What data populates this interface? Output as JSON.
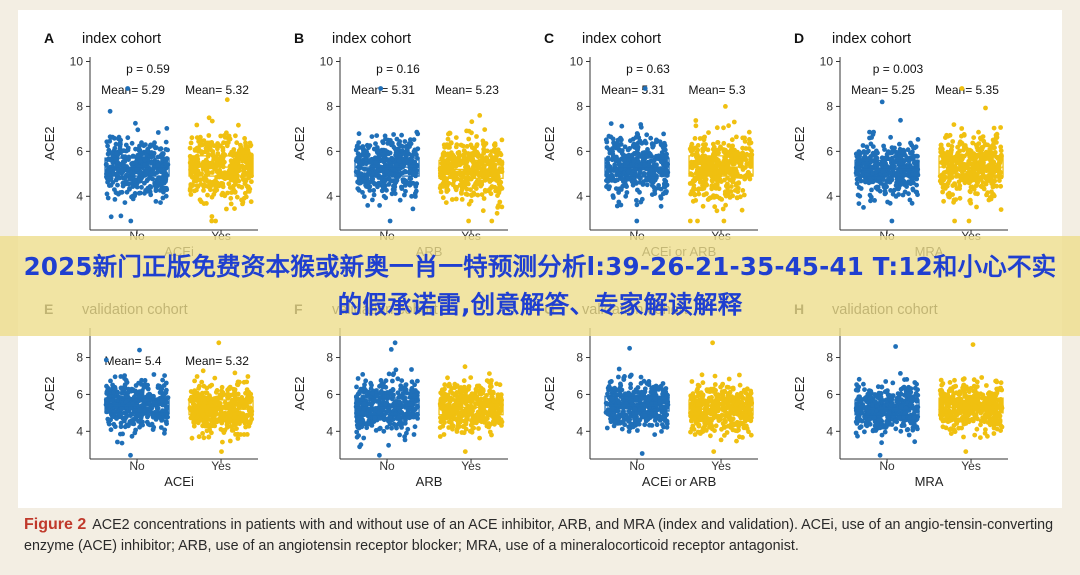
{
  "figure": {
    "caption_label": "Figure 2",
    "caption_text": "ACE2 concentrations in patients with and without use of an ACE inhibitor, ARB, and MRA (index and validation). ACEi, use of an angio-tensin-converting enzyme (ACE) inhibitor; ARB, use of an angiotensin receptor blocker; MRA, use of a mineralocorticoid receptor antagonist."
  },
  "banner": {
    "text": "2025新门正版免费资本猴或新奥一肖一特预测分析l:39-26-21-35-45-41 T:12和小心不实的假承诺雷,创意解答、专家解读解释"
  },
  "colors": {
    "no": "#1f6fb8",
    "yes": "#f0c010",
    "axis": "#333333"
  },
  "chart_data": [
    {
      "type": "scatter",
      "panel": "A",
      "title": "index cohort",
      "p_label": "p = 0.59",
      "mean_labels": [
        "Mean= 5.29",
        "Mean= 5.32"
      ],
      "categories": [
        "No",
        "Yes"
      ],
      "xlabel": "ACEi",
      "ylabel": "ACE2",
      "ylim": [
        2.5,
        10.2
      ],
      "yticks": [
        4,
        6,
        8,
        10
      ],
      "series": [
        {
          "category": "No",
          "mean": 5.29,
          "q1": 4.9,
          "median": 5.3,
          "q3": 5.7,
          "min": 2.9,
          "max": 8.8
        },
        {
          "category": "Yes",
          "mean": 5.32,
          "q1": 4.9,
          "median": 5.3,
          "q3": 5.8,
          "min": 2.9,
          "max": 8.3
        }
      ]
    },
    {
      "type": "scatter",
      "panel": "B",
      "title": "index cohort",
      "p_label": "p = 0.16",
      "mean_labels": [
        "Mean= 5.31",
        "Mean= 5.23"
      ],
      "categories": [
        "No",
        "Yes"
      ],
      "xlabel": "ARB",
      "ylabel": "ACE2",
      "ylim": [
        2.5,
        10.2
      ],
      "yticks": [
        4,
        6,
        8,
        10
      ],
      "series": [
        {
          "category": "No",
          "mean": 5.31,
          "q1": 4.9,
          "median": 5.3,
          "q3": 5.7,
          "min": 2.9,
          "max": 8.8
        },
        {
          "category": "Yes",
          "mean": 5.23,
          "q1": 4.8,
          "median": 5.2,
          "q3": 5.6,
          "min": 2.9,
          "max": 7.6
        }
      ]
    },
    {
      "type": "scatter",
      "panel": "C",
      "title": "index cohort",
      "p_label": "p = 0.63",
      "mean_labels": [
        "Mean= 5.31",
        "Mean= 5.3"
      ],
      "categories": [
        "No",
        "Yes"
      ],
      "xlabel": "ACEi or ARB",
      "ylabel": "ACE2",
      "ylim": [
        2.5,
        10.2
      ],
      "yticks": [
        4,
        6,
        8,
        10
      ],
      "series": [
        {
          "category": "No",
          "mean": 5.31,
          "q1": 4.9,
          "median": 5.3,
          "q3": 5.7,
          "min": 2.9,
          "max": 8.8
        },
        {
          "category": "Yes",
          "mean": 5.3,
          "q1": 4.9,
          "median": 5.3,
          "q3": 5.8,
          "min": 2.9,
          "max": 8.0
        }
      ]
    },
    {
      "type": "scatter",
      "panel": "D",
      "title": "index cohort",
      "p_label": "p = 0.003",
      "mean_labels": [
        "Mean= 5.25",
        "Mean= 5.35"
      ],
      "categories": [
        "No",
        "Yes"
      ],
      "xlabel": "MRA",
      "ylabel": "ACE2",
      "ylim": [
        2.5,
        10.2
      ],
      "yticks": [
        4,
        6,
        8,
        10
      ],
      "series": [
        {
          "category": "No",
          "mean": 5.25,
          "q1": 4.9,
          "median": 5.2,
          "q3": 5.6,
          "min": 2.9,
          "max": 8.2
        },
        {
          "category": "Yes",
          "mean": 5.35,
          "q1": 4.9,
          "median": 5.3,
          "q3": 5.8,
          "min": 2.9,
          "max": 8.8
        }
      ]
    },
    {
      "type": "scatter",
      "panel": "E",
      "title": "validation cohort",
      "p_label": "",
      "mean_labels": [
        "Mean= 5.4",
        "Mean= 5.32"
      ],
      "categories": [
        "No",
        "Yes"
      ],
      "xlabel": "ACEi",
      "ylabel": "ACE2",
      "ylim": [
        2.5,
        9.6
      ],
      "yticks": [
        4,
        6,
        8
      ],
      "series": [
        {
          "category": "No",
          "mean": 5.4,
          "q1": 5.0,
          "median": 5.4,
          "q3": 5.8,
          "min": 2.7,
          "max": 8.4
        },
        {
          "category": "Yes",
          "mean": 5.32,
          "q1": 4.9,
          "median": 5.2,
          "q3": 5.7,
          "min": 2.9,
          "max": 8.8
        }
      ]
    },
    {
      "type": "scatter",
      "panel": "F",
      "title": "validation cohort",
      "p_label": "",
      "mean_labels": [],
      "categories": [
        "No",
        "Yes"
      ],
      "xlabel": "ARB",
      "ylabel": "ACE2",
      "ylim": [
        2.5,
        9.6
      ],
      "yticks": [
        4,
        6,
        8
      ],
      "series": [
        {
          "category": "No",
          "mean": 5.35,
          "q1": 4.9,
          "median": 5.3,
          "q3": 5.8,
          "min": 2.7,
          "max": 8.8
        },
        {
          "category": "Yes",
          "mean": 5.3,
          "q1": 4.9,
          "median": 5.3,
          "q3": 5.7,
          "min": 2.9,
          "max": 7.5
        }
      ]
    },
    {
      "type": "scatter",
      "panel": "G",
      "title": "validation cohort",
      "p_label": "",
      "mean_labels": [],
      "categories": [
        "No",
        "Yes"
      ],
      "xlabel": "ACEi or ARB",
      "ylabel": "ACE2",
      "ylim": [
        2.5,
        9.6
      ],
      "yticks": [
        4,
        6,
        8
      ],
      "series": [
        {
          "category": "No",
          "mean": 5.45,
          "q1": 5.1,
          "median": 5.4,
          "q3": 5.9,
          "min": 2.8,
          "max": 8.5
        },
        {
          "category": "Yes",
          "mean": 5.3,
          "q1": 4.9,
          "median": 5.2,
          "q3": 5.7,
          "min": 2.9,
          "max": 8.8
        }
      ]
    },
    {
      "type": "scatter",
      "panel": "H",
      "title": "validation cohort",
      "p_label": "",
      "mean_labels": [],
      "categories": [
        "No",
        "Yes"
      ],
      "xlabel": "MRA",
      "ylabel": "ACE2",
      "ylim": [
        2.5,
        9.6
      ],
      "yticks": [
        4,
        6,
        8
      ],
      "series": [
        {
          "category": "No",
          "mean": 5.3,
          "q1": 4.9,
          "median": 5.2,
          "q3": 5.7,
          "min": 2.7,
          "max": 8.6
        },
        {
          "category": "Yes",
          "mean": 5.35,
          "q1": 5.0,
          "median": 5.3,
          "q3": 5.8,
          "min": 2.9,
          "max": 8.7
        }
      ]
    }
  ]
}
